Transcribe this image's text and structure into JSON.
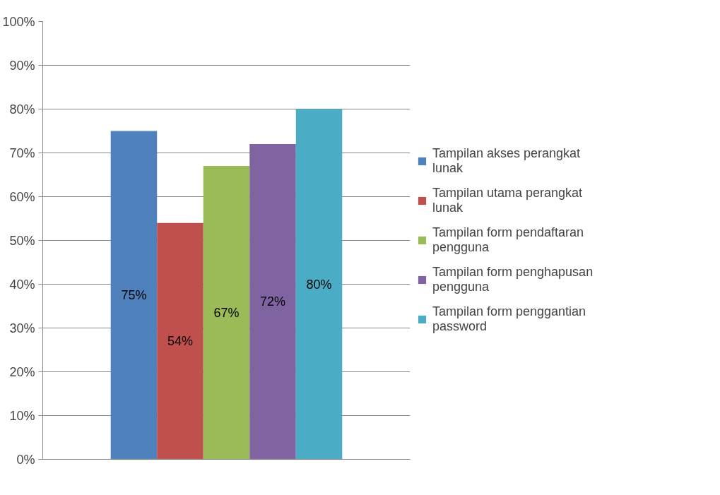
{
  "chart_data": {
    "type": "bar",
    "categories": [
      null
    ],
    "series": [
      {
        "name": "Tampilan akses perangkat lunak",
        "color": "#4f81bd",
        "values": [
          75
        ],
        "value_labels": [
          "75%"
        ]
      },
      {
        "name": "Tampilan utama perangkat lunak",
        "color": "#c0504d",
        "values": [
          54
        ],
        "value_labels": [
          "54%"
        ]
      },
      {
        "name": "Tampilan form pendaftaran pengguna",
        "color": "#9bbb59",
        "values": [
          67
        ],
        "value_labels": [
          "67%"
        ]
      },
      {
        "name": "Tampilan form penghapusan pengguna",
        "color": "#8064a2",
        "values": [
          72
        ],
        "value_labels": [
          "72%"
        ]
      },
      {
        "name": "Tampilan form penggantian password",
        "color": "#4bacc6",
        "values": [
          80
        ],
        "value_labels": [
          "80%"
        ]
      }
    ],
    "ylim": [
      0,
      100
    ],
    "yticks": [
      {
        "value": 0,
        "label": "0%"
      },
      {
        "value": 10,
        "label": "10%"
      },
      {
        "value": 20,
        "label": "20%"
      },
      {
        "value": 30,
        "label": "30%"
      },
      {
        "value": 40,
        "label": "40%"
      },
      {
        "value": 50,
        "label": "50%"
      },
      {
        "value": 60,
        "label": "60%"
      },
      {
        "value": 70,
        "label": "70%"
      },
      {
        "value": 80,
        "label": "80%"
      },
      {
        "value": 90,
        "label": "90%"
      },
      {
        "value": 100,
        "label": "100%"
      }
    ],
    "grid": "y",
    "legend": "right"
  }
}
